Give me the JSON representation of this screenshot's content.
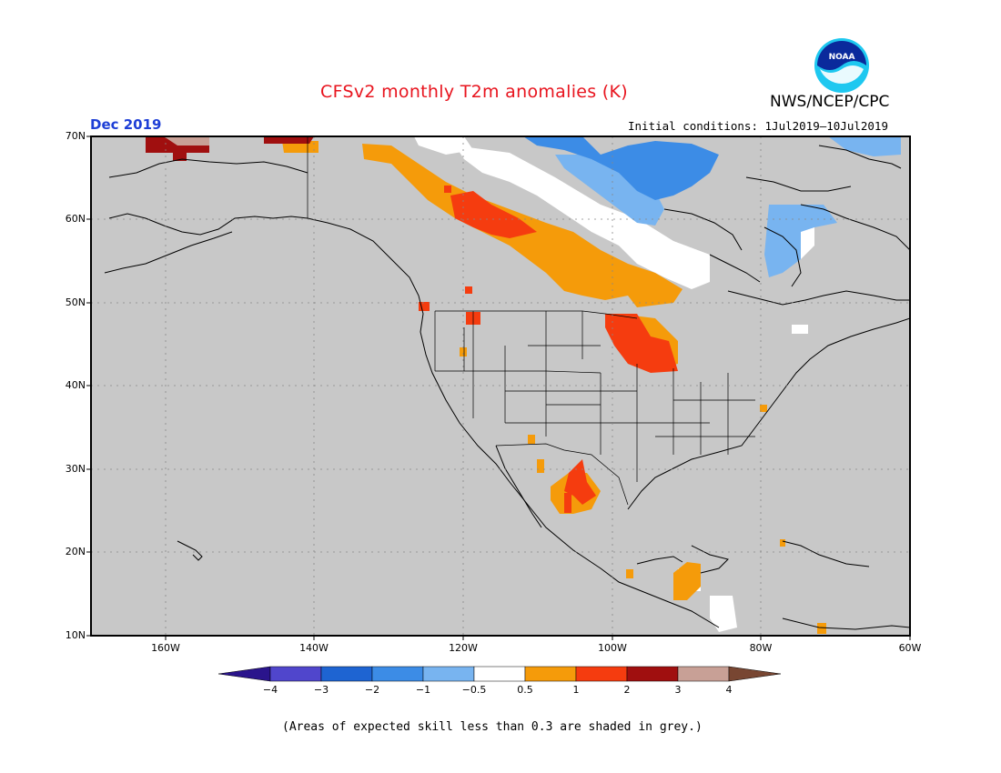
{
  "header": {
    "title": "CFSv2 monthly T2m anomalies (K)",
    "month": "Dec 2019",
    "org": "NWS/NCEP/CPC",
    "initial_conditions": "Initial conditions: 1Jul2019–10Jul2019",
    "logo_text": "NOAA"
  },
  "map": {
    "lat_labels": [
      "70N",
      "60N",
      "50N",
      "40N",
      "30N",
      "20N",
      "10N"
    ],
    "lon_labels": [
      "160W",
      "140W",
      "120W",
      "100W",
      "80W",
      "60W"
    ]
  },
  "colorbar": {
    "labels": [
      "−4",
      "−3",
      "−2",
      "−1",
      "−0.5",
      "0.5",
      "1",
      "2",
      "3",
      "4"
    ],
    "colors": [
      "#2a148c",
      "#5046cc",
      "#1e64d2",
      "#3c8ce6",
      "#78b4f0",
      "#ffffff",
      "#f59b0a",
      "#f53c0f",
      "#a00f0f",
      "#c8a096",
      "#784632"
    ]
  },
  "footnote": "(Areas of expected skill less than 0.3 are shaded in grey.)"
}
